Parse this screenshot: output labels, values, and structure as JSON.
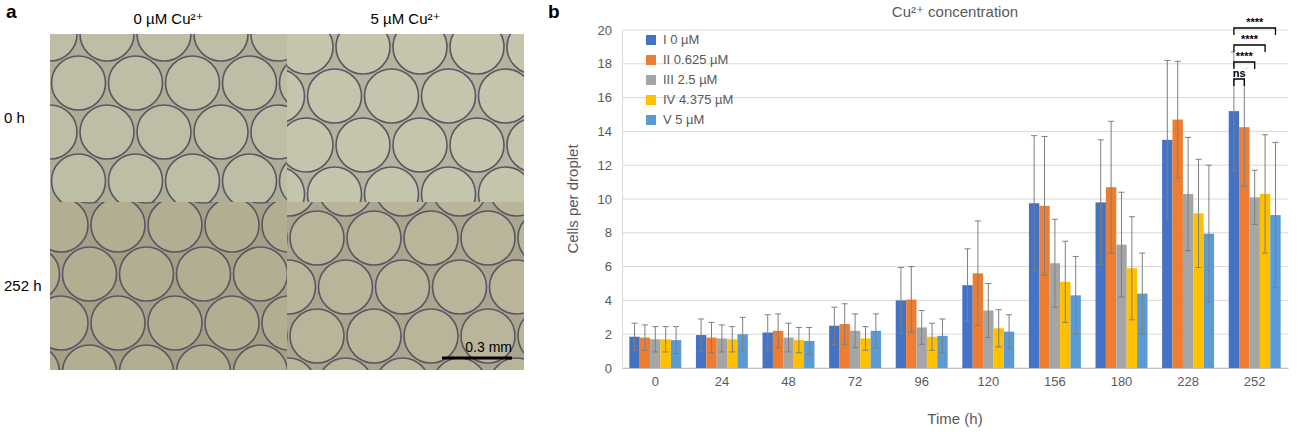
{
  "panel_a": {
    "label": "a",
    "columns": [
      "0 µM Cu²⁺",
      "5 µM Cu²⁺"
    ],
    "rows": [
      "0 h",
      "252 h"
    ],
    "scale_bar": "0.3 mm"
  },
  "chart_data": {
    "type": "bar",
    "panel": "b",
    "title": "Cu²⁺ concentration",
    "x_label": "Time (h)",
    "y_label": "Cells per droplet",
    "categories": [
      "0",
      "24",
      "48",
      "72",
      "96",
      "120",
      "156",
      "180",
      "228",
      "252"
    ],
    "series": [
      {
        "name": "I 0 µM",
        "color": "#4472c4",
        "values": [
          1.85,
          1.95,
          2.1,
          2.5,
          4.0,
          4.9,
          9.75,
          9.8,
          13.5,
          15.2
        ],
        "errors": [
          0.8,
          0.95,
          1.05,
          1.1,
          1.95,
          2.15,
          4.0,
          3.7,
          4.7,
          3.5
        ]
      },
      {
        "name": "II 0.625 µM",
        "color": "#ed7d31",
        "values": [
          1.8,
          1.8,
          2.2,
          2.6,
          4.05,
          5.6,
          9.6,
          10.7,
          14.7,
          14.25
        ],
        "errors": [
          0.75,
          0.9,
          1.0,
          1.2,
          1.95,
          3.1,
          4.1,
          3.9,
          3.45,
          3.5
        ]
      },
      {
        "name": "III 2.5 µM",
        "color": "#a5a5a5",
        "values": [
          1.7,
          1.75,
          1.8,
          2.2,
          2.4,
          3.4,
          6.2,
          7.3,
          10.3,
          10.1
        ],
        "errors": [
          0.75,
          0.8,
          0.85,
          1.0,
          1.0,
          1.6,
          2.6,
          3.1,
          3.35,
          1.6
        ]
      },
      {
        "name": "IV 4.375 µM",
        "color": "#ffc000",
        "values": [
          1.7,
          1.7,
          1.65,
          1.75,
          1.85,
          2.35,
          5.1,
          5.9,
          9.15,
          10.3
        ],
        "errors": [
          0.75,
          0.75,
          0.75,
          0.7,
          0.8,
          1.1,
          2.4,
          3.05,
          3.2,
          3.5
        ]
      },
      {
        "name": "V 5 µM",
        "color": "#5b9bd5",
        "values": [
          1.65,
          2.0,
          1.6,
          2.2,
          1.9,
          2.15,
          4.3,
          4.4,
          7.95,
          9.05
        ],
        "errors": [
          0.8,
          1.0,
          0.8,
          1.0,
          1.0,
          1.0,
          2.3,
          2.4,
          4.05,
          4.3
        ]
      }
    ],
    "ylim": [
      0,
      20
    ],
    "yticks": [
      0,
      2,
      4,
      6,
      8,
      10,
      12,
      14,
      16,
      18,
      20
    ],
    "grid": true,
    "legend": "top-left",
    "comparisons": [
      {
        "category": "252",
        "series": [
          "I 0 µM",
          "II 0.625 µM"
        ],
        "label": "ns"
      },
      {
        "category": "252",
        "series": [
          "I 0 µM",
          "III 2.5 µM"
        ],
        "label": "****"
      },
      {
        "category": "252",
        "series": [
          "I 0 µM",
          "IV 4.375 µM"
        ],
        "label": "****"
      },
      {
        "category": "252",
        "series": [
          "I 0 µM",
          "V 5 µM"
        ],
        "label": "****"
      }
    ]
  }
}
